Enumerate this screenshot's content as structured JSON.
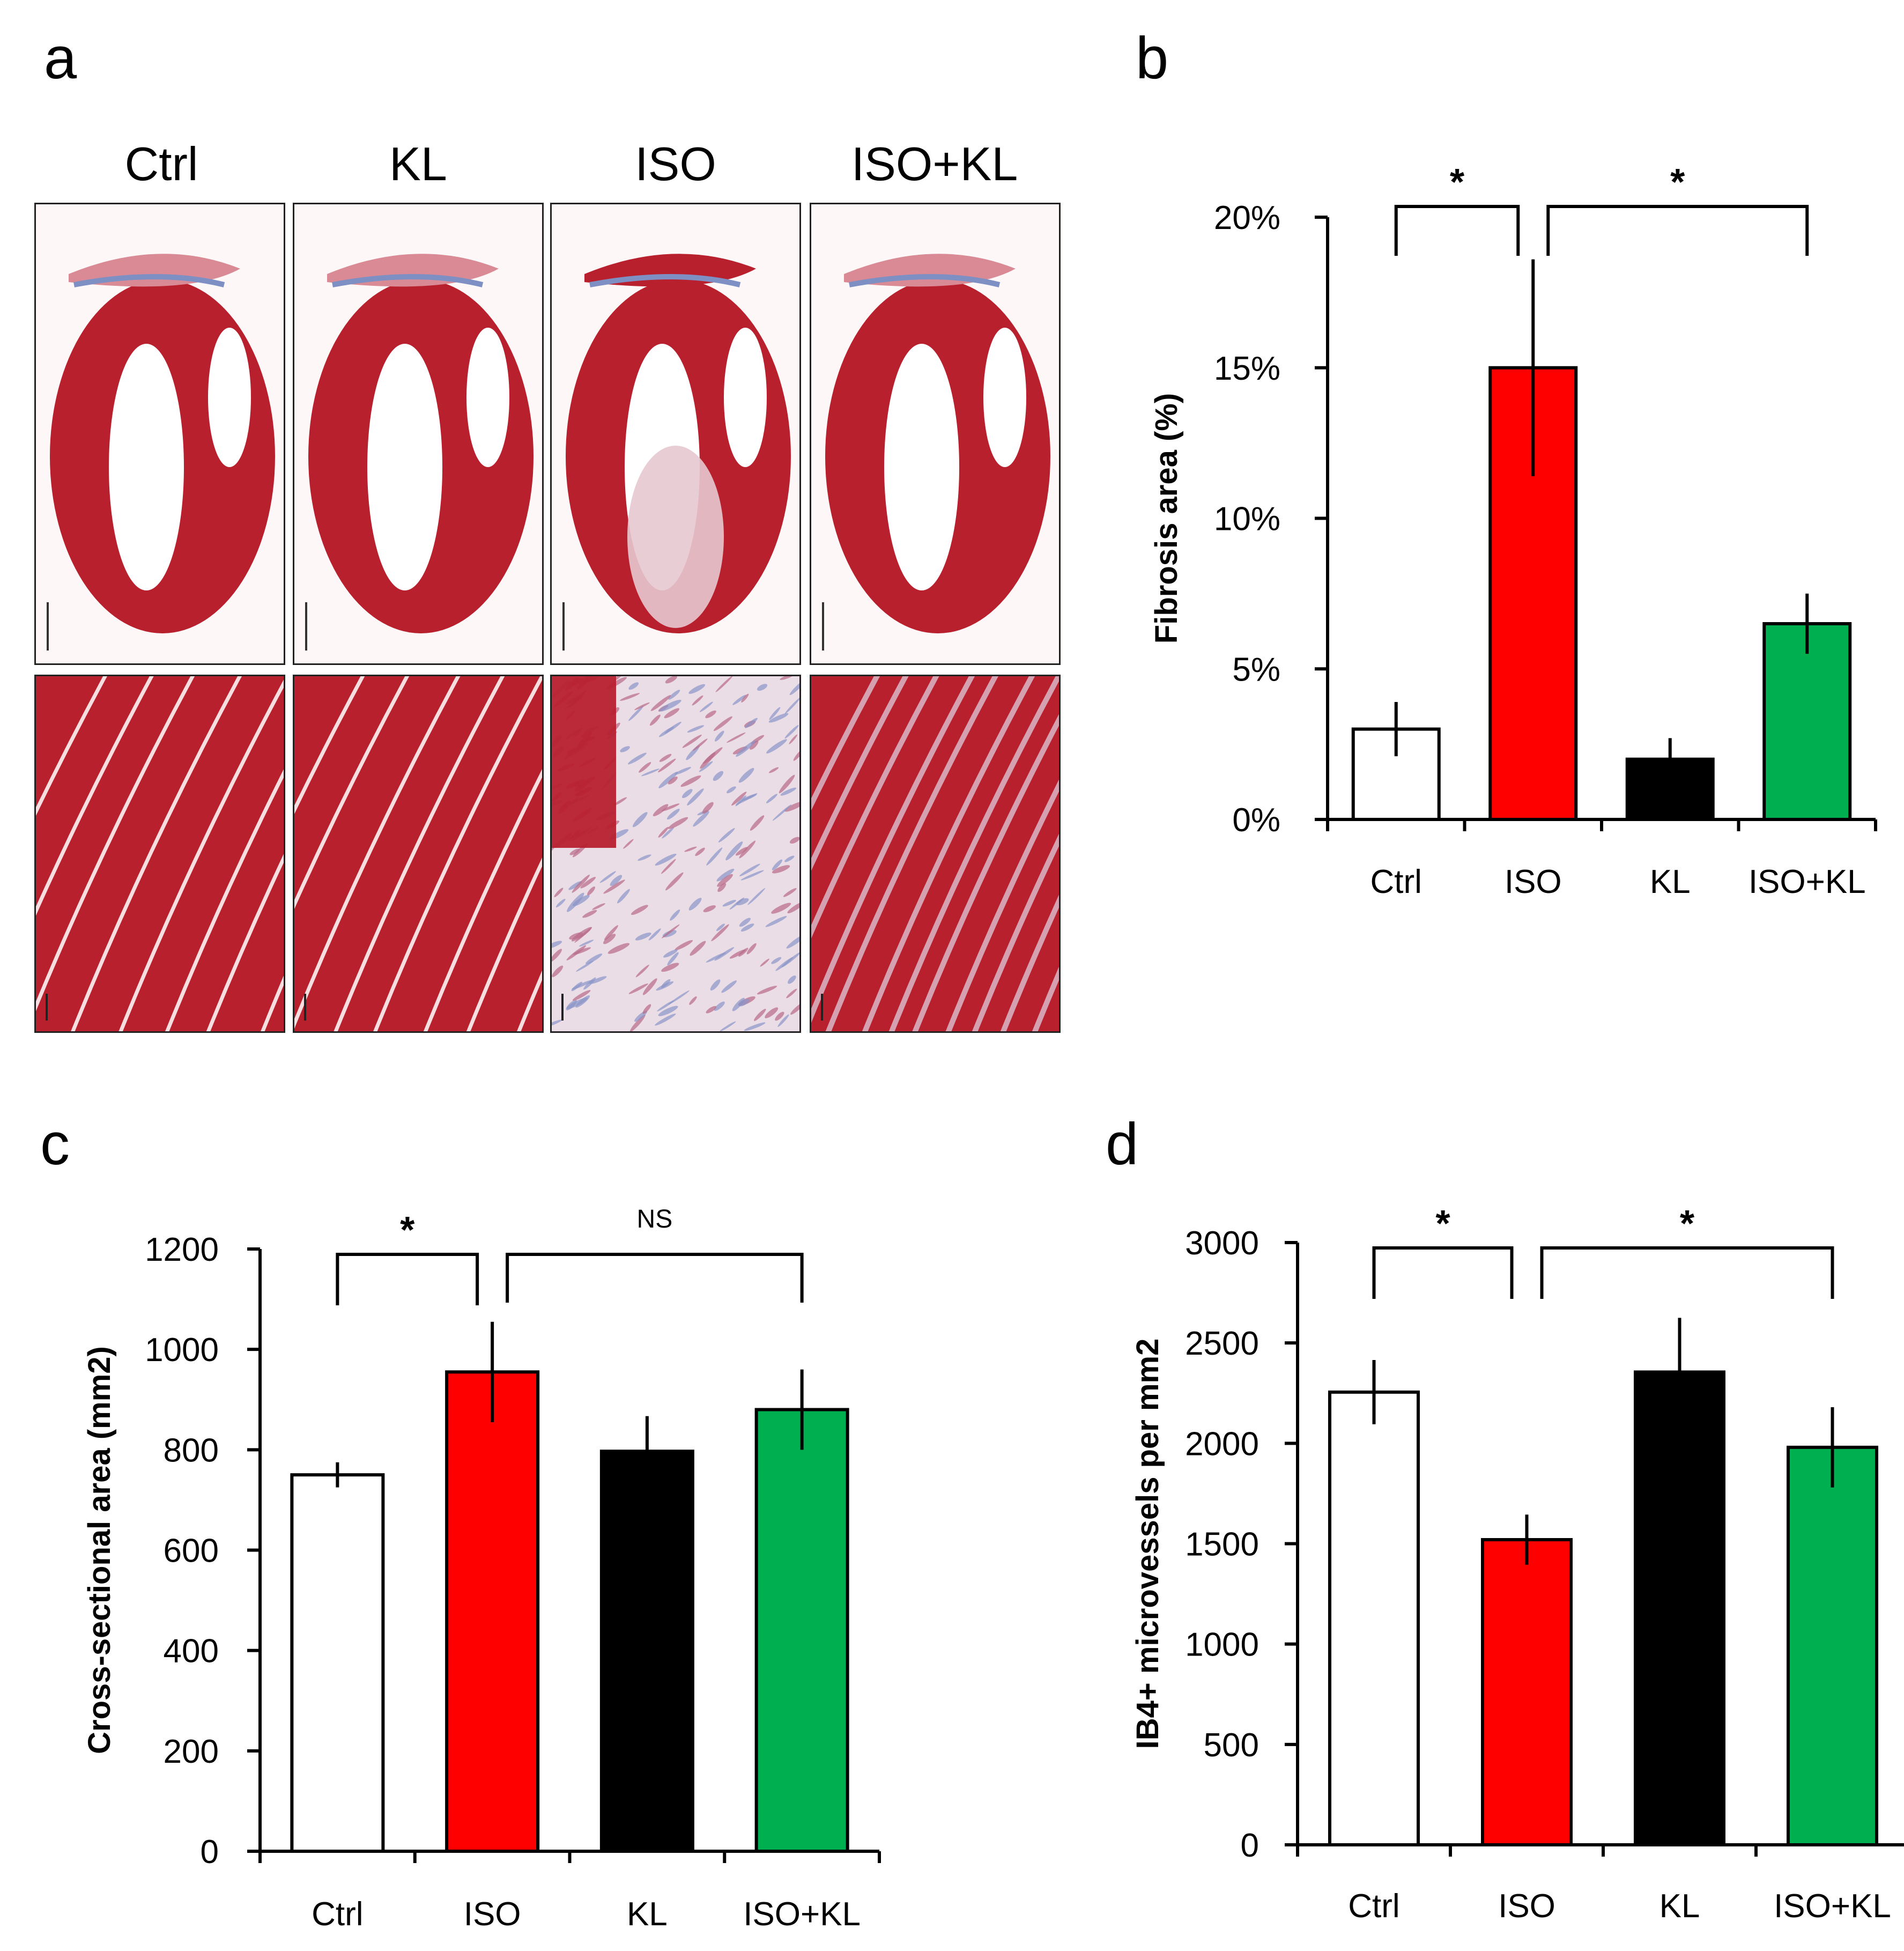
{
  "panels": {
    "a": "a",
    "b": "b",
    "c": "c",
    "d": "d"
  },
  "histology": {
    "columns": [
      "Ctrl",
      "KL",
      "ISO",
      "ISO+KL"
    ],
    "stain_colors": {
      "muscle": "#b8202e",
      "collagen": "#7e8fc4",
      "background": "#fdf7f7"
    }
  },
  "chart_data": [
    {
      "id": "b",
      "type": "bar",
      "ylabel": "Fibrosis area (%)",
      "categories": [
        "Ctrl",
        "ISO",
        "KL",
        "ISO+KL"
      ],
      "values": [
        3,
        15,
        2,
        6.5
      ],
      "errors": [
        0.9,
        3.6,
        0.7,
        1.0
      ],
      "colors": [
        "#ffffff",
        "#ff0000",
        "#000000",
        "#00b050"
      ],
      "ylim": [
        0,
        20
      ],
      "yticks": [
        0,
        5,
        10,
        15,
        20
      ],
      "ytick_labels": [
        "0%",
        "5%",
        "10%",
        "15%",
        "20%"
      ],
      "significance": [
        {
          "from": 0,
          "to": 1,
          "label": "*"
        },
        {
          "from": 1,
          "to": 3,
          "label": "*"
        }
      ]
    },
    {
      "id": "c",
      "type": "bar",
      "ylabel": "Cross-sectional area (mm2)",
      "categories": [
        "Ctrl",
        "ISO",
        "KL",
        "ISO+KL"
      ],
      "values": [
        750,
        955,
        797,
        880
      ],
      "errors": [
        25,
        100,
        70,
        80
      ],
      "colors": [
        "#ffffff",
        "#ff0000",
        "#000000",
        "#00b050"
      ],
      "ylim": [
        0,
        1200
      ],
      "yticks": [
        0,
        200,
        400,
        600,
        800,
        1000,
        1200
      ],
      "ytick_labels": [
        "0",
        "200",
        "400",
        "600",
        "800",
        "1000",
        "1200"
      ],
      "significance": [
        {
          "from": 0,
          "to": 1,
          "label": "*"
        },
        {
          "from": 1,
          "to": 3,
          "label": "NS"
        }
      ]
    },
    {
      "id": "d",
      "type": "bar",
      "ylabel": "IB4+ microvessels per mm2",
      "categories": [
        "Ctrl",
        "ISO",
        "KL",
        "ISO+KL"
      ],
      "values": [
        2255,
        1520,
        2355,
        1980
      ],
      "errors": [
        160,
        125,
        270,
        200
      ],
      "colors": [
        "#ffffff",
        "#ff0000",
        "#000000",
        "#00b050"
      ],
      "ylim": [
        0,
        3000
      ],
      "yticks": [
        0,
        500,
        1000,
        1500,
        2000,
        2500,
        3000
      ],
      "ytick_labels": [
        "0",
        "500",
        "1000",
        "1500",
        "2000",
        "2500",
        "3000"
      ],
      "significance": [
        {
          "from": 0,
          "to": 1,
          "label": "*"
        },
        {
          "from": 1,
          "to": 3,
          "label": "*"
        }
      ]
    }
  ]
}
